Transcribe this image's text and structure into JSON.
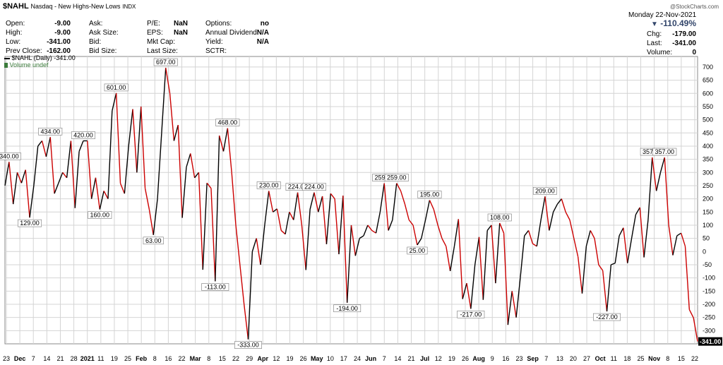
{
  "header": {
    "symbol": "$NAHL",
    "description": "Nasdaq - New Highs-New Lows",
    "type": "INDX",
    "watermark": "@StockCharts.com",
    "date": "Monday  22-Nov-2021",
    "change_pct": "-110.49%",
    "quote": [
      {
        "label": "Open:",
        "value": "-9.00"
      },
      {
        "label": "High:",
        "value": "-9.00"
      },
      {
        "label": "Low:",
        "value": "-341.00"
      },
      {
        "label": "Prev Close:",
        "value": "-162.00"
      }
    ],
    "col2": [
      {
        "label": "Ask:",
        "value": ""
      },
      {
        "label": "Ask Size:",
        "value": ""
      },
      {
        "label": "Bid:",
        "value": ""
      },
      {
        "label": "Bid Size:",
        "value": ""
      }
    ],
    "col3": [
      {
        "label": "P/E:",
        "value": "NaN"
      },
      {
        "label": "EPS:",
        "value": "NaN"
      },
      {
        "label": "Mkt Cap:",
        "value": ""
      },
      {
        "label": "Last Size:",
        "value": ""
      }
    ],
    "col4": [
      {
        "label": "Options:",
        "value": "no"
      },
      {
        "label": "Annual Dividend:",
        "value": "N/A"
      },
      {
        "label": "Yield:",
        "value": "N/A"
      },
      {
        "label": "SCTR:",
        "value": ""
      }
    ],
    "right": [
      {
        "label": "Chg:",
        "value": "-179.00"
      },
      {
        "label": "Last:",
        "value": "-341.00"
      },
      {
        "label": "Volume:",
        "value": "0"
      }
    ]
  },
  "legend": {
    "series": "$NAHL (Daily) -341.00",
    "volume": "Volume undef"
  },
  "colors": {
    "up": "#000000",
    "down": "#cc0000",
    "grid": "#d4d4d4",
    "arrow": "#33466b",
    "last_box": "#000000"
  },
  "chart_data": {
    "type": "line",
    "ylim": [
      -350,
      740
    ],
    "yticks": [
      -300,
      -250,
      -200,
      -150,
      -100,
      -50,
      0,
      50,
      100,
      150,
      200,
      250,
      300,
      350,
      400,
      450,
      500,
      550,
      600,
      650,
      700
    ],
    "xticks": [
      "23",
      "Dec",
      "7",
      "14",
      "21",
      "28",
      "2021",
      "11",
      "19",
      "25",
      "Feb",
      "8",
      "16",
      "22",
      "Mar",
      "8",
      "15",
      "22",
      "29",
      "Apr",
      "12",
      "19",
      "26",
      "May",
      "10",
      "17",
      "24",
      "Jun",
      "7",
      "14",
      "21",
      "Jul",
      "12",
      "19",
      "26",
      "Aug",
      "9",
      "16",
      "23",
      "Sep",
      "7",
      "13",
      "20",
      "27",
      "Oct",
      "11",
      "18",
      "25",
      "Nov",
      "8",
      "15",
      "22"
    ],
    "values": [
      250,
      340,
      180,
      300,
      260,
      310,
      129,
      250,
      400,
      420,
      360,
      434,
      220,
      260,
      300,
      280,
      420,
      165,
      380,
      420,
      420,
      200,
      280,
      160,
      230,
      200,
      534,
      601,
      259,
      220,
      400,
      540,
      300,
      550,
      240,
      160,
      63,
      200,
      450,
      697,
      600,
      420,
      480,
      128,
      320,
      372,
      280,
      300,
      -69,
      260,
      240,
      -113,
      440,
      380,
      468,
      300,
      100,
      -50,
      -200,
      -333,
      0,
      50,
      -50,
      100,
      230,
      150,
      162,
      80,
      66,
      150,
      120,
      224,
      100,
      -70,
      160,
      224,
      150,
      210,
      28,
      220,
      200,
      -10,
      212,
      -194,
      100,
      -16,
      50,
      60,
      100,
      80,
      70,
      150,
      259,
      80,
      120,
      259,
      230,
      180,
      120,
      100,
      25,
      50,
      120,
      195,
      160,
      100,
      50,
      20,
      -74,
      20,
      123,
      -180,
      -120,
      -217,
      -50,
      55,
      -183,
      80,
      100,
      -120,
      108,
      70,
      -278,
      -150,
      -250,
      -100,
      60,
      80,
      30,
      20,
      120,
      209,
      80,
      150,
      180,
      200,
      150,
      120,
      50,
      -20,
      -159,
      20,
      80,
      50,
      -50,
      -72,
      -227,
      -50,
      -44,
      60,
      90,
      -44,
      50,
      140,
      167,
      -22,
      120,
      357,
      230,
      300,
      357,
      100,
      -14,
      60,
      70,
      20,
      -220,
      -251,
      -341
    ]
  }
}
